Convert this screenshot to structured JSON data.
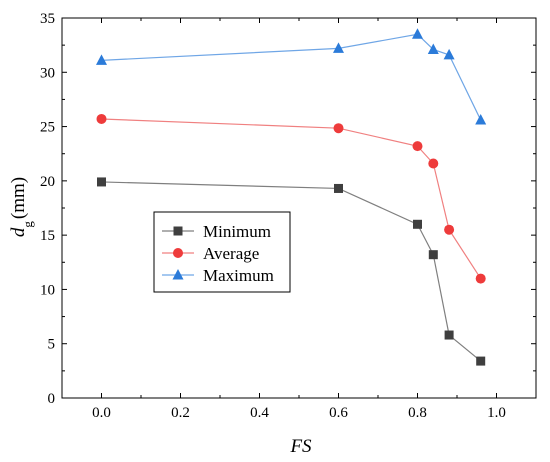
{
  "chart_data": {
    "type": "line",
    "xlabel": "FS",
    "ylabel": {
      "symbol": "d",
      "subscript": "g",
      "unit": "(mm)"
    },
    "xlim": [
      -0.1,
      1.1
    ],
    "ylim": [
      0,
      35
    ],
    "xticks": [
      0.0,
      0.2,
      0.4,
      0.6,
      0.8,
      1.0
    ],
    "xtick_labels": [
      "0.0",
      "0.2",
      "0.4",
      "0.6",
      "0.8",
      "1.0"
    ],
    "yticks": [
      0,
      5,
      10,
      15,
      20,
      25,
      30,
      35
    ],
    "ytick_labels": [
      "0",
      "5",
      "10",
      "15",
      "20",
      "25",
      "30",
      "35"
    ],
    "grid": false,
    "legend_position": "center-left",
    "x": [
      0.0,
      0.6,
      0.8,
      0.84,
      0.88,
      0.96
    ],
    "series": [
      {
        "name": "Minimum",
        "marker": "square",
        "marker_color": "#3f3f3f",
        "line_color": "#7f7f7f",
        "values": [
          19.9,
          19.3,
          16.0,
          13.2,
          5.8,
          3.4
        ]
      },
      {
        "name": "Average",
        "marker": "circle",
        "marker_color": "#ee3b3b",
        "line_color": "#f08080",
        "values": [
          25.7,
          24.85,
          23.2,
          21.6,
          15.5,
          11.0
        ]
      },
      {
        "name": "Maximum",
        "marker": "triangle",
        "marker_color": "#2b7bd9",
        "line_color": "#6fa6e6",
        "values": [
          31.1,
          32.2,
          33.5,
          32.1,
          31.6,
          25.6
        ]
      }
    ]
  }
}
